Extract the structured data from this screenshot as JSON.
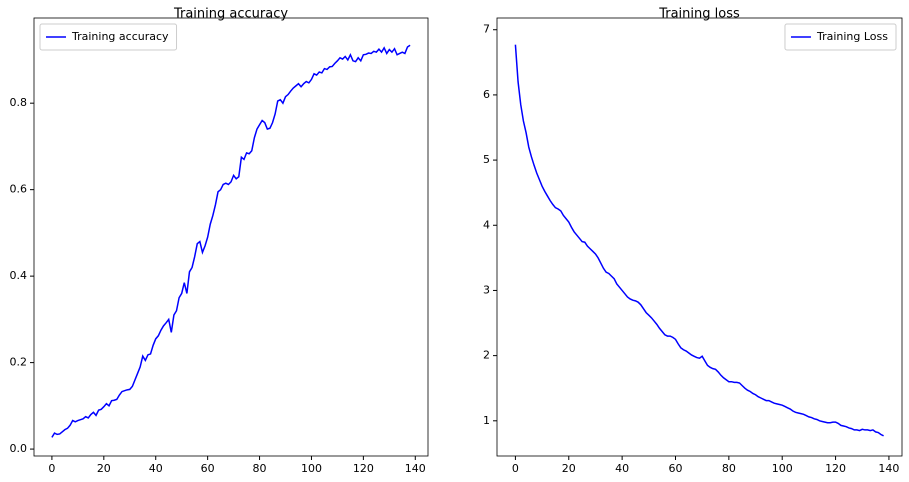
{
  "chart_data": [
    {
      "type": "line",
      "title": "Training accuracy",
      "legend": "upper left",
      "x": [
        0,
        1,
        2,
        3,
        4,
        5,
        6,
        7,
        8,
        9,
        10,
        11,
        12,
        13,
        14,
        15,
        16,
        17,
        18,
        19,
        20,
        21,
        22,
        23,
        24,
        25,
        26,
        27,
        28,
        29,
        30,
        31,
        32,
        33,
        34,
        35,
        36,
        37,
        38,
        39,
        40,
        41,
        42,
        43,
        44,
        45,
        46,
        47,
        48,
        49,
        50,
        51,
        52,
        53,
        54,
        55,
        56,
        57,
        58,
        59,
        60,
        61,
        62,
        63,
        64,
        65,
        66,
        67,
        68,
        69,
        70,
        71,
        72,
        73,
        74,
        75,
        76,
        77,
        78,
        79,
        80,
        81,
        82,
        83,
        84,
        85,
        86,
        87,
        88,
        89,
        90,
        91,
        92,
        93,
        94,
        95,
        96,
        97,
        98,
        99,
        100,
        101,
        102,
        103,
        104,
        105,
        106,
        107,
        108,
        109,
        110,
        111,
        112,
        113,
        114,
        115,
        116,
        117,
        118,
        119,
        120,
        121,
        122,
        123,
        124,
        125,
        126,
        127,
        128,
        129,
        130,
        131,
        132,
        133,
        134,
        135,
        136,
        137,
        138
      ],
      "series": [
        {
          "name": "Training accuracy",
          "color": "#0000ff",
          "values": [
            0.027,
            0.037,
            0.034,
            0.035,
            0.04,
            0.045,
            0.048,
            0.055,
            0.066,
            0.063,
            0.066,
            0.068,
            0.07,
            0.075,
            0.072,
            0.08,
            0.085,
            0.078,
            0.09,
            0.092,
            0.098,
            0.105,
            0.1,
            0.112,
            0.113,
            0.115,
            0.125,
            0.133,
            0.135,
            0.137,
            0.138,
            0.145,
            0.16,
            0.175,
            0.19,
            0.215,
            0.205,
            0.218,
            0.22,
            0.24,
            0.255,
            0.262,
            0.275,
            0.285,
            0.292,
            0.3,
            0.27,
            0.31,
            0.32,
            0.35,
            0.36,
            0.385,
            0.36,
            0.41,
            0.42,
            0.445,
            0.475,
            0.48,
            0.455,
            0.47,
            0.49,
            0.52,
            0.54,
            0.565,
            0.595,
            0.6,
            0.612,
            0.615,
            0.612,
            0.618,
            0.633,
            0.625,
            0.63,
            0.675,
            0.67,
            0.685,
            0.683,
            0.69,
            0.72,
            0.74,
            0.75,
            0.76,
            0.755,
            0.74,
            0.742,
            0.755,
            0.775,
            0.805,
            0.808,
            0.8,
            0.815,
            0.82,
            0.828,
            0.835,
            0.84,
            0.845,
            0.838,
            0.845,
            0.85,
            0.847,
            0.855,
            0.868,
            0.865,
            0.872,
            0.87,
            0.88,
            0.878,
            0.884,
            0.885,
            0.892,
            0.898,
            0.905,
            0.902,
            0.908,
            0.9,
            0.912,
            0.898,
            0.896,
            0.905,
            0.898,
            0.912,
            0.913,
            0.916,
            0.915,
            0.92,
            0.918,
            0.925,
            0.918,
            0.928,
            0.915,
            0.924,
            0.918,
            0.926,
            0.912,
            0.915,
            0.918,
            0.915,
            0.93,
            0.934
          ]
        }
      ],
      "xlim": [
        -6.9,
        144.9
      ],
      "xticks": [
        0,
        20,
        40,
        60,
        80,
        100,
        120,
        140
      ],
      "ylim": [
        -0.016,
        0.997
      ],
      "yticks": [
        {
          "value": 0,
          "label": "0.0"
        },
        {
          "value": 0.2,
          "label": "0.2"
        },
        {
          "value": 0.4,
          "label": "0.4"
        },
        {
          "value": 0.6,
          "label": "0.6"
        },
        {
          "value": 0.8,
          "label": "0.8"
        }
      ]
    },
    {
      "type": "line",
      "title": "Training loss",
      "legend": "upper right",
      "x": [
        0,
        1,
        2,
        3,
        4,
        5,
        6,
        7,
        8,
        9,
        10,
        11,
        12,
        13,
        14,
        15,
        16,
        17,
        18,
        19,
        20,
        21,
        22,
        23,
        24,
        25,
        26,
        27,
        28,
        29,
        30,
        31,
        32,
        33,
        34,
        35,
        36,
        37,
        38,
        39,
        40,
        41,
        42,
        43,
        44,
        45,
        46,
        47,
        48,
        49,
        50,
        51,
        52,
        53,
        54,
        55,
        56,
        57,
        58,
        59,
        60,
        61,
        62,
        63,
        64,
        65,
        66,
        67,
        68,
        69,
        70,
        71,
        72,
        73,
        74,
        75,
        76,
        77,
        78,
        79,
        80,
        81,
        82,
        83,
        84,
        85,
        86,
        87,
        88,
        89,
        90,
        91,
        92,
        93,
        94,
        95,
        96,
        97,
        98,
        99,
        100,
        101,
        102,
        103,
        104,
        105,
        106,
        107,
        108,
        109,
        110,
        111,
        112,
        113,
        114,
        115,
        116,
        117,
        118,
        119,
        120,
        121,
        122,
        123,
        124,
        125,
        126,
        127,
        128,
        129,
        130,
        131,
        132,
        133,
        134,
        135,
        136,
        137,
        138
      ],
      "series": [
        {
          "name": "Training Loss",
          "color": "#0000ff",
          "values": [
            6.77,
            6.2,
            5.85,
            5.6,
            5.42,
            5.2,
            5.05,
            4.92,
            4.8,
            4.7,
            4.6,
            4.52,
            4.45,
            4.38,
            4.32,
            4.27,
            4.25,
            4.22,
            4.15,
            4.1,
            4.05,
            3.97,
            3.9,
            3.85,
            3.8,
            3.75,
            3.74,
            3.68,
            3.64,
            3.6,
            3.56,
            3.5,
            3.42,
            3.34,
            3.28,
            3.26,
            3.22,
            3.18,
            3.1,
            3.05,
            3.0,
            2.95,
            2.9,
            2.87,
            2.85,
            2.84,
            2.82,
            2.78,
            2.72,
            2.66,
            2.62,
            2.58,
            2.53,
            2.48,
            2.42,
            2.37,
            2.32,
            2.3,
            2.3,
            2.28,
            2.25,
            2.18,
            2.12,
            2.09,
            2.07,
            2.04,
            2.01,
            1.99,
            1.97,
            1.96,
            1.99,
            1.92,
            1.85,
            1.82,
            1.8,
            1.79,
            1.75,
            1.7,
            1.66,
            1.63,
            1.6,
            1.6,
            1.59,
            1.59,
            1.58,
            1.54,
            1.5,
            1.47,
            1.45,
            1.42,
            1.4,
            1.37,
            1.35,
            1.33,
            1.31,
            1.31,
            1.29,
            1.27,
            1.26,
            1.25,
            1.24,
            1.22,
            1.2,
            1.18,
            1.15,
            1.13,
            1.12,
            1.11,
            1.1,
            1.08,
            1.06,
            1.05,
            1.03,
            1.02,
            1.0,
            0.99,
            0.98,
            0.97,
            0.97,
            0.98,
            0.98,
            0.96,
            0.93,
            0.92,
            0.91,
            0.89,
            0.88,
            0.86,
            0.86,
            0.85,
            0.87,
            0.86,
            0.86,
            0.85,
            0.86,
            0.83,
            0.82,
            0.79,
            0.77
          ]
        }
      ],
      "xlim": [
        -6.9,
        144.9
      ],
      "xticks": [
        0,
        20,
        40,
        60,
        80,
        100,
        120,
        140
      ],
      "ylim": [
        0.46,
        7.18
      ],
      "yticks": [
        1,
        2,
        3,
        4,
        5,
        6,
        7
      ]
    }
  ]
}
